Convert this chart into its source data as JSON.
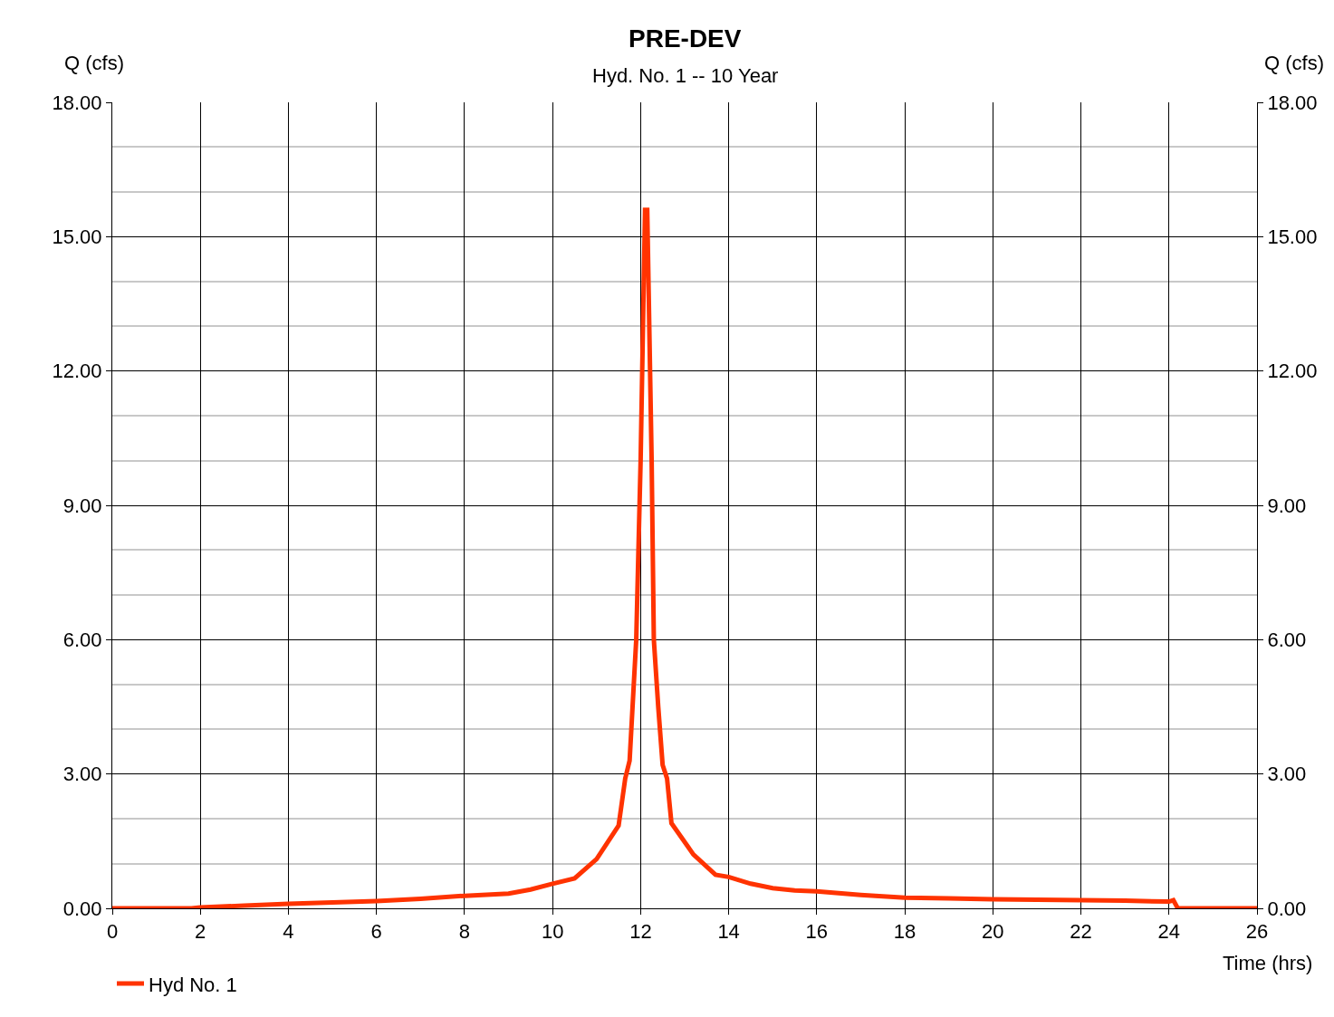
{
  "chart_data": {
    "type": "line",
    "title": "PRE-DEV",
    "subtitle": "Hyd. No. 1 -- 10 Year",
    "xlabel": "Time (hrs)",
    "ylabel": "Q (cfs)",
    "y2label": "Q (cfs)",
    "series": [
      {
        "name": "Hyd No. 1",
        "color": "#ff3300",
        "x": [
          0,
          1.8,
          2,
          3,
          4,
          5,
          6,
          7,
          8,
          9,
          9.5,
          10,
          10.5,
          11,
          11.5,
          11.65,
          11.75,
          11.9,
          12.0,
          12.1,
          12.15,
          12.25,
          12.3,
          12.4,
          12.5,
          12.6,
          12.7,
          13.2,
          13.7,
          14,
          14.5,
          15,
          15.5,
          16,
          17,
          18,
          19,
          20,
          21,
          22,
          23,
          24,
          24.1,
          24.2,
          26
        ],
        "values": [
          0,
          0,
          0.02,
          0.06,
          0.1,
          0.13,
          0.16,
          0.21,
          0.28,
          0.33,
          0.42,
          0.55,
          0.67,
          1.1,
          1.85,
          2.9,
          3.3,
          6,
          10,
          15.6,
          15.6,
          10,
          6,
          4.5,
          3.2,
          2.9,
          1.9,
          1.2,
          0.75,
          0.7,
          0.55,
          0.45,
          0.4,
          0.38,
          0.3,
          0.24,
          0.22,
          0.2,
          0.19,
          0.18,
          0.17,
          0.15,
          0.18,
          0,
          0
        ]
      }
    ],
    "xlim": [
      0,
      26
    ],
    "xticks": [
      0,
      2,
      4,
      6,
      8,
      10,
      12,
      14,
      16,
      18,
      20,
      22,
      24,
      26
    ],
    "ylim": [
      0,
      18
    ],
    "yticks": [
      {
        "value": 0,
        "label": "0.00"
      },
      {
        "value": 1,
        "label": null
      },
      {
        "value": 2,
        "label": null
      },
      {
        "value": 3,
        "label": "3.00"
      },
      {
        "value": 4,
        "label": null
      },
      {
        "value": 5,
        "label": null
      },
      {
        "value": 6,
        "label": "6.00"
      },
      {
        "value": 7,
        "label": null
      },
      {
        "value": 8,
        "label": null
      },
      {
        "value": 9,
        "label": "9.00"
      },
      {
        "value": 10,
        "label": null
      },
      {
        "value": 11,
        "label": null
      },
      {
        "value": 12,
        "label": "12.00"
      },
      {
        "value": 13,
        "label": null
      },
      {
        "value": 14,
        "label": null
      },
      {
        "value": 15,
        "label": "15.00"
      },
      {
        "value": 16,
        "label": null
      },
      {
        "value": 17,
        "label": null
      },
      {
        "value": 18,
        "label": "18.00"
      }
    ],
    "y2lim": [
      0,
      18
    ],
    "y2ticks": [
      {
        "value": 0,
        "label": "0.00"
      },
      {
        "value": 3,
        "label": "3.00"
      },
      {
        "value": 6,
        "label": "6.00"
      },
      {
        "value": 9,
        "label": "9.00"
      },
      {
        "value": 12,
        "label": "12.00"
      },
      {
        "value": 15,
        "label": "15.00"
      },
      {
        "value": 18,
        "label": "18.00"
      }
    ],
    "grid": true,
    "legend": "bottom left",
    "marker": "none",
    "line_style": "solid"
  }
}
